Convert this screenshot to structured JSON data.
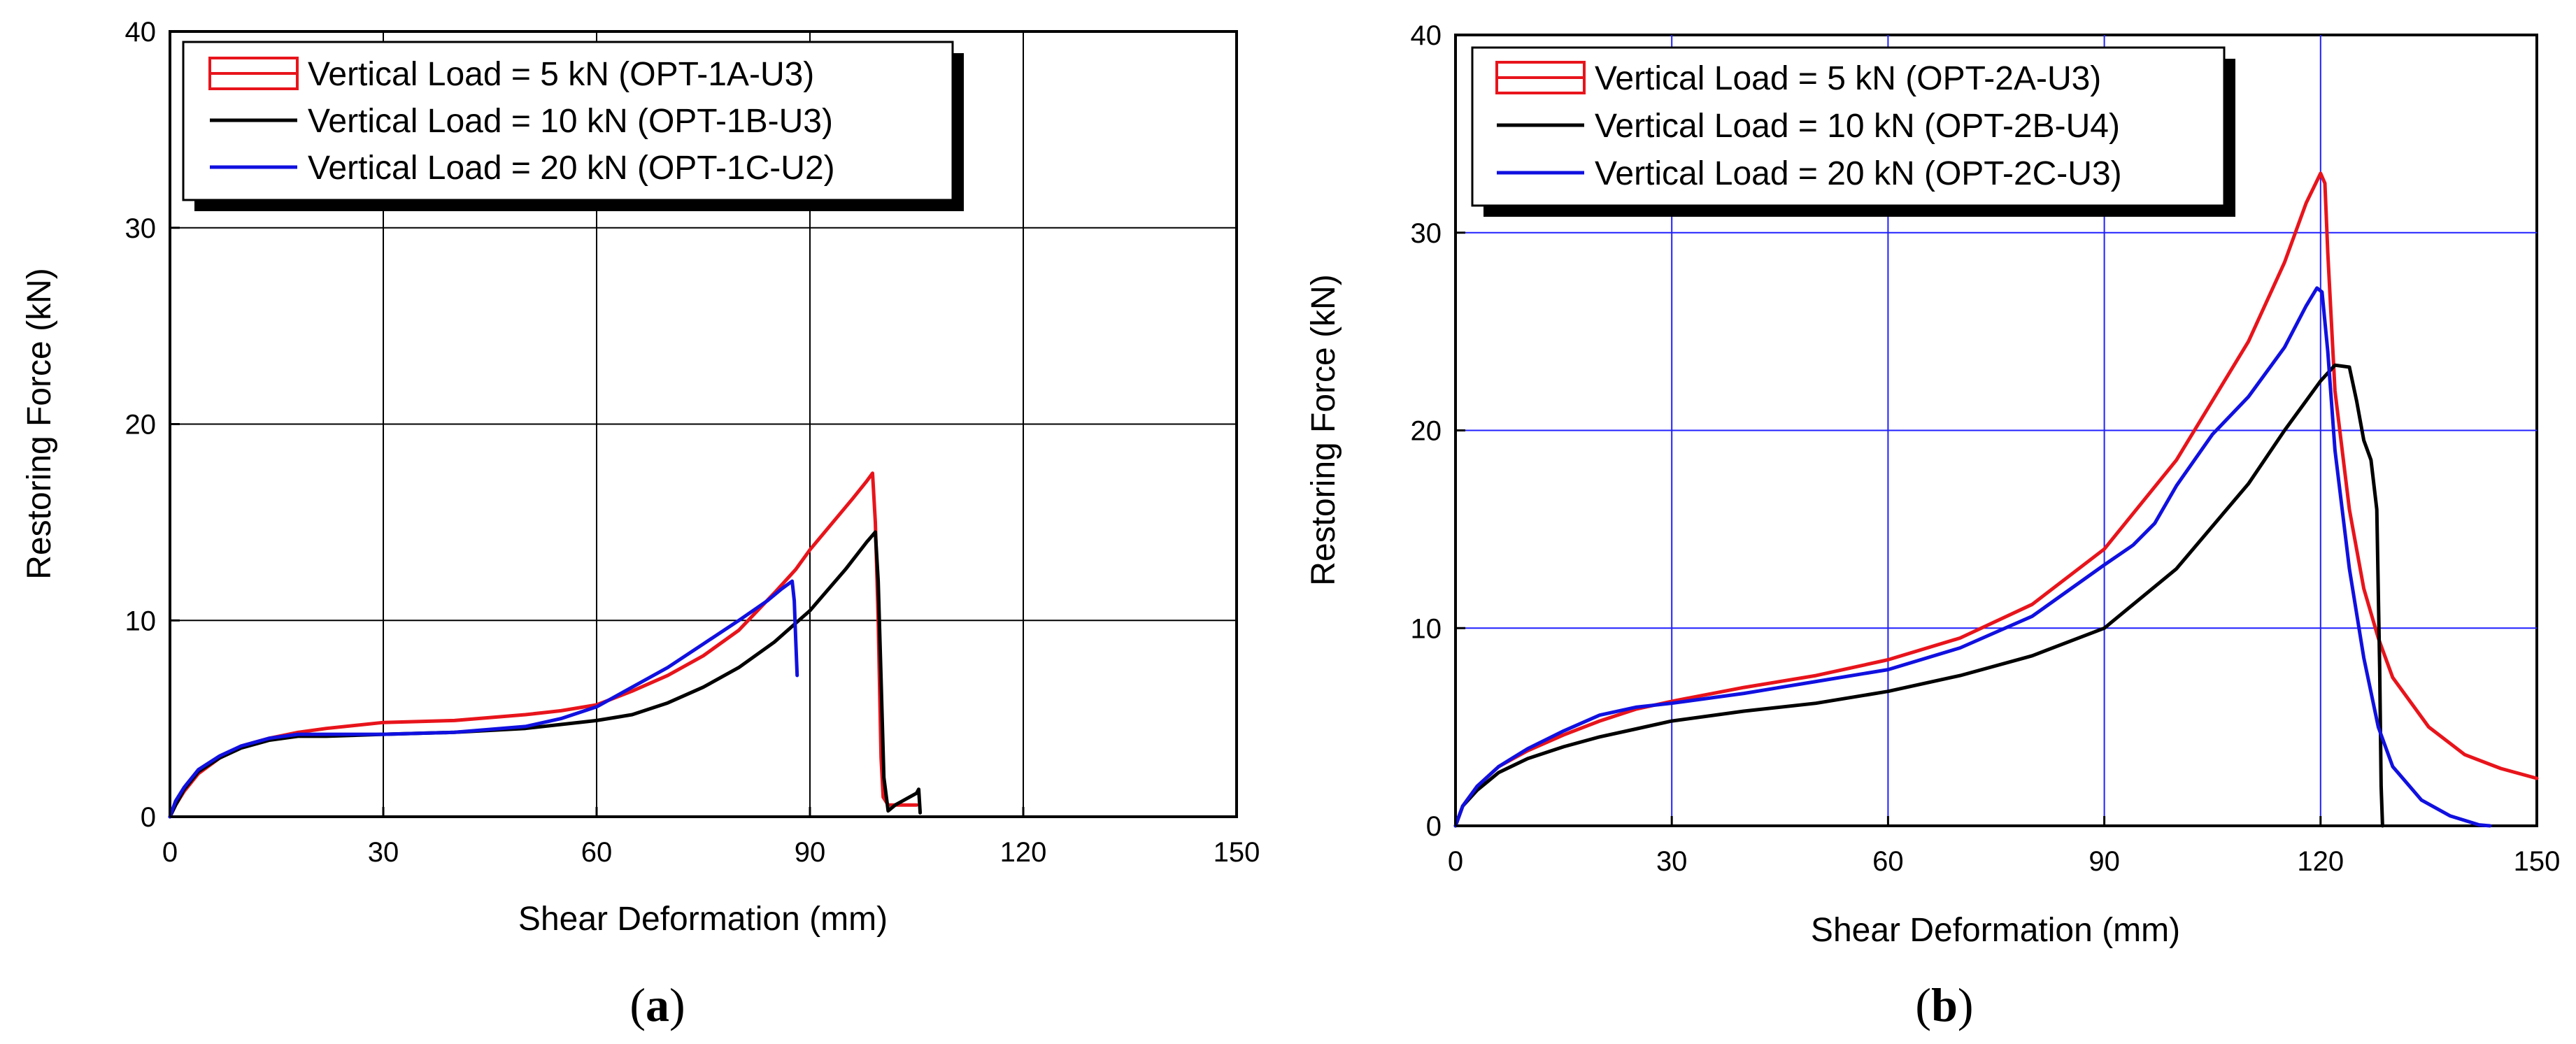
{
  "chart_data": [
    {
      "id": "a",
      "type": "line",
      "caption_open": "(",
      "caption_label": "a",
      "caption_close": ")",
      "xlabel": "Shear Deformation (mm)",
      "ylabel": "Restoring Force (kN)",
      "xlim": [
        0,
        150
      ],
      "ylim": [
        0,
        40
      ],
      "xticks": [
        0,
        30,
        60,
        90,
        120,
        150
      ],
      "yticks": [
        0,
        10,
        20,
        30,
        40
      ],
      "grid": true,
      "grid_color": "#000000",
      "legend_position": "top-left",
      "series": [
        {
          "name": "Vertical Load = 5 kN (OPT-1A-U3)",
          "color": "#e8141b",
          "legend_style": "box",
          "x": [
            0,
            0.8,
            2,
            4,
            7,
            10,
            14,
            18,
            22,
            30,
            40,
            50,
            55,
            60,
            65,
            70,
            75,
            80,
            85,
            88,
            90,
            93,
            96,
            98,
            98.8,
            99.2,
            99.6,
            100,
            100.3,
            101,
            103,
            105
          ],
          "y": [
            0,
            0.6,
            1.3,
            2.2,
            3.0,
            3.6,
            4.0,
            4.3,
            4.5,
            4.8,
            4.9,
            5.2,
            5.4,
            5.7,
            6.4,
            7.2,
            8.2,
            9.5,
            11.4,
            12.6,
            13.6,
            14.9,
            16.2,
            17.1,
            17.5,
            15,
            10,
            3,
            1.0,
            0.6,
            0.6,
            0.6
          ]
        },
        {
          "name": "Vertical Load = 10 kN (OPT-1B-U3)",
          "color": "#000000",
          "legend_style": "line",
          "x": [
            0,
            0.8,
            2,
            4,
            7,
            10,
            14,
            18,
            22,
            30,
            40,
            50,
            60,
            65,
            70,
            75,
            80,
            85,
            90,
            95,
            98,
            99.2,
            99.6,
            100,
            100.4,
            101,
            102,
            103,
            104,
            105,
            105.3,
            105.5
          ],
          "y": [
            0,
            0.6,
            1.4,
            2.3,
            3.0,
            3.5,
            3.9,
            4.1,
            4.1,
            4.2,
            4.3,
            4.5,
            4.9,
            5.2,
            5.8,
            6.6,
            7.6,
            8.9,
            10.5,
            12.6,
            14.0,
            14.5,
            12,
            7,
            2,
            0.3,
            0.6,
            0.8,
            1.0,
            1.2,
            1.4,
            0.2
          ]
        },
        {
          "name": "Vertical Load = 20 kN (OPT-1C-U2)",
          "color": "#1010e0",
          "legend_style": "line",
          "x": [
            0,
            0.8,
            2,
            4,
            7,
            10,
            14,
            18,
            22,
            30,
            40,
            50,
            55,
            60,
            65,
            70,
            75,
            80,
            84,
            86,
            87.5,
            87.8,
            88.0,
            88.2
          ],
          "y": [
            0,
            0.8,
            1.5,
            2.4,
            3.1,
            3.6,
            4.0,
            4.2,
            4.2,
            4.2,
            4.3,
            4.6,
            5.0,
            5.6,
            6.6,
            7.6,
            8.8,
            10.0,
            11.0,
            11.6,
            12.0,
            11.0,
            9.0,
            7.2
          ]
        }
      ]
    },
    {
      "id": "b",
      "type": "line",
      "caption_open": "(",
      "caption_label": "b",
      "caption_close": ")",
      "xlabel": "Shear Deformation (mm)",
      "ylabel": "Restoring Force (kN)",
      "xlim": [
        0,
        150
      ],
      "ylim": [
        0,
        40
      ],
      "xticks": [
        0,
        30,
        60,
        90,
        120,
        150
      ],
      "yticks": [
        0,
        10,
        20,
        30,
        40
      ],
      "grid": true,
      "grid_color": "#2020ff",
      "legend_position": "top-left",
      "series": [
        {
          "name": "Vertical Load = 5 kN (OPT-2A-U3)",
          "color": "#e8141b",
          "legend_style": "box",
          "x": [
            0,
            1,
            3,
            6,
            10,
            15,
            20,
            25,
            30,
            40,
            50,
            60,
            70,
            80,
            90,
            100,
            110,
            115,
            118,
            120,
            120.6,
            121,
            122,
            124,
            126,
            128,
            130,
            135,
            140,
            145,
            150
          ],
          "y": [
            0,
            1.0,
            2.0,
            3.0,
            3.8,
            4.6,
            5.3,
            5.9,
            6.3,
            7.0,
            7.6,
            8.4,
            9.5,
            11.2,
            14.0,
            18.5,
            24.5,
            28.5,
            31.5,
            33.0,
            32.5,
            29,
            22,
            16,
            12,
            9.5,
            7.5,
            5.0,
            3.6,
            2.9,
            2.4
          ]
        },
        {
          "name": "Vertical Load = 10 kN (OPT-2B-U4)",
          "color": "#000000",
          "legend_style": "line",
          "x": [
            0,
            1,
            3,
            6,
            10,
            15,
            20,
            25,
            30,
            40,
            50,
            60,
            70,
            80,
            90,
            100,
            110,
            115,
            118,
            120,
            122,
            124,
            125,
            126,
            127,
            127.8,
            128.2,
            128.4,
            128.6
          ],
          "y": [
            0,
            1.0,
            1.8,
            2.7,
            3.4,
            4.0,
            4.5,
            4.9,
            5.3,
            5.8,
            6.2,
            6.8,
            7.6,
            8.6,
            10.0,
            13.0,
            17.3,
            20.0,
            21.5,
            22.5,
            23.3,
            23.2,
            21.5,
            19.5,
            18.5,
            16,
            8,
            2,
            0
          ]
        },
        {
          "name": "Vertical Load = 20 kN (OPT-2C-U3)",
          "color": "#1010e0",
          "legend_style": "line",
          "x": [
            0,
            1,
            3,
            6,
            10,
            15,
            20,
            25,
            30,
            40,
            50,
            60,
            70,
            80,
            90,
            94,
            97,
            100,
            105,
            110,
            115,
            118,
            119.5,
            120.2,
            121,
            122,
            124,
            126,
            128,
            130,
            134,
            138,
            142,
            143.5
          ],
          "y": [
            0,
            1.0,
            2.0,
            3.0,
            3.9,
            4.8,
            5.6,
            6.0,
            6.2,
            6.7,
            7.3,
            7.9,
            9.0,
            10.6,
            13.2,
            14.2,
            15.3,
            17.2,
            19.8,
            21.7,
            24.2,
            26.3,
            27.2,
            27.0,
            24,
            19,
            13,
            8.5,
            5.0,
            3.0,
            1.3,
            0.5,
            0.05,
            0
          ]
        }
      ]
    }
  ]
}
